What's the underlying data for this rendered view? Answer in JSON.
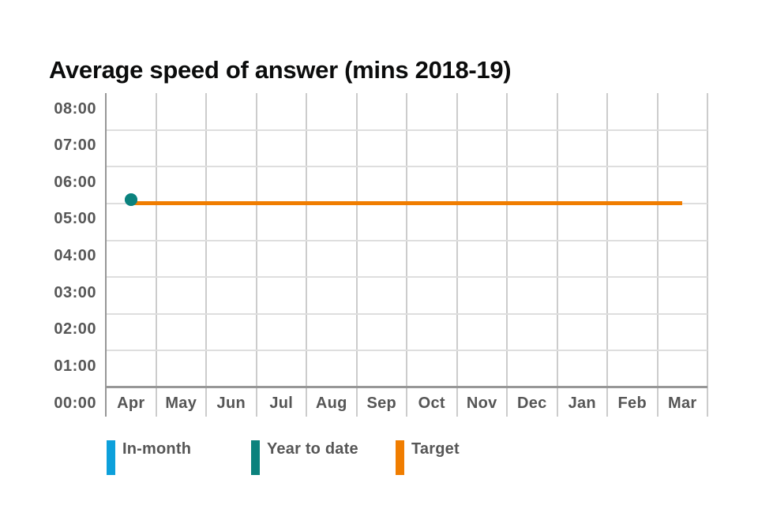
{
  "title": "Average speed of answer (mins 2018-19)",
  "colors": {
    "background": "#ffffff",
    "title_text": "#0b0c0c",
    "axis_text": "#565656",
    "grid_horizontal": "#dedede",
    "grid_vertical": "#cccccc",
    "axis_line": "#979797",
    "in_month": "#0da0db",
    "year_to_date": "#0b827d",
    "target": "#f07d00"
  },
  "chart_data": {
    "type": "line",
    "title": "Average speed of answer (mins 2018-19)",
    "x_categories": [
      "Apr",
      "May",
      "Jun",
      "Jul",
      "Aug",
      "Sep",
      "Oct",
      "Nov",
      "Dec",
      "Jan",
      "Feb",
      "Mar"
    ],
    "y_axis": {
      "tick_labels": [
        "00:00",
        "01:00",
        "02:00",
        "03:00",
        "04:00",
        "05:00",
        "06:00",
        "07:00",
        "08:00"
      ],
      "unit": "minutes:seconds (mm:ss)",
      "min_minutes": 0,
      "max_minutes": 8,
      "gridlines": true
    },
    "series": [
      {
        "name": "In-month",
        "type": "point",
        "color": "#0da0db",
        "points": [
          {
            "x": "Apr",
            "label": "05:07",
            "minutes": 5.11
          }
        ],
        "note": "April marker coincides with Year to date value and is hidden beneath its marker"
      },
      {
        "name": "Year to date",
        "type": "point",
        "color": "#0b827d",
        "points": [
          {
            "x": "Apr",
            "label": "05:07",
            "minutes": 5.11
          }
        ]
      },
      {
        "name": "Target",
        "type": "horizontal-line",
        "color": "#f07d00",
        "label": "05:00",
        "minutes": 5.0,
        "span": {
          "from": "Apr",
          "to": "Mar"
        }
      }
    ],
    "legend_position": "bottom",
    "grid": true
  },
  "legend": {
    "items": [
      {
        "label": "In-month",
        "color": "#0da0db"
      },
      {
        "label": "Year to date",
        "color": "#0b827d"
      },
      {
        "label": "Target",
        "color": "#f07d00"
      }
    ]
  }
}
